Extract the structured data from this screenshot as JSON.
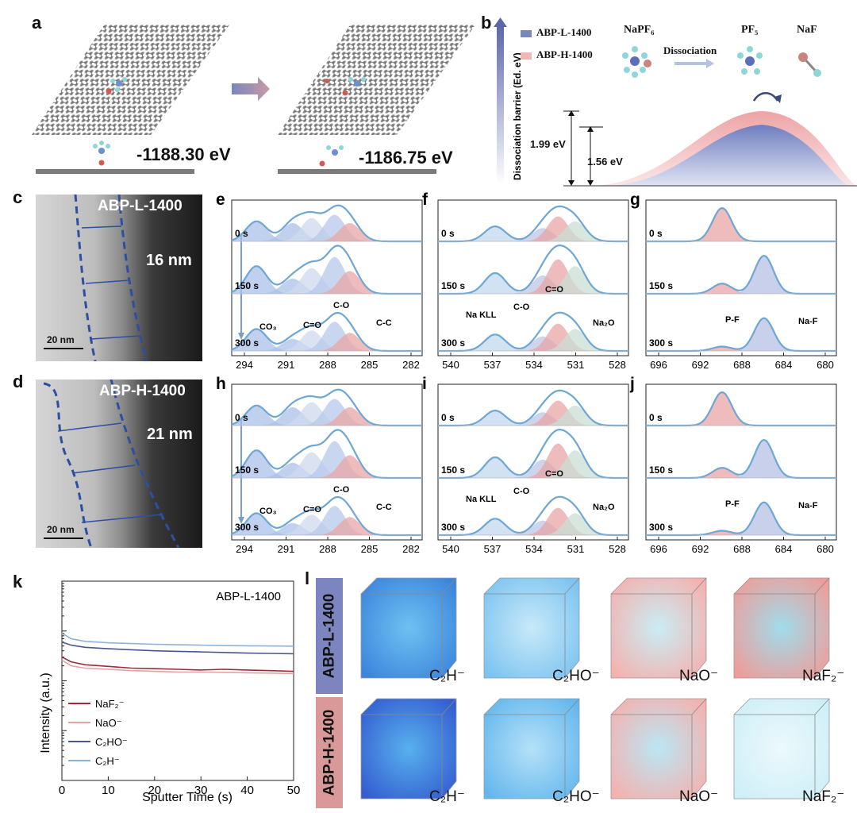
{
  "panels": {
    "a": {
      "letter": "a",
      "energy_left": "-1188.30 eV",
      "energy_right": "-1186.75 eV"
    },
    "b": {
      "letter": "b",
      "y_axis": "Dissociation barrier (Ed. eV)",
      "legend": [
        {
          "name": "ABP-L-1400",
          "color": "#7b86b9"
        },
        {
          "name": "ABP-H-1400",
          "color": "#f0b7b7"
        }
      ],
      "molecules": {
        "reactant": "NaPF₆",
        "arrow": "Dissociation",
        "product1": "PF₅",
        "product2": "NaF"
      },
      "barrier_h": "1.99 eV",
      "barrier_l": "1.56 eV"
    },
    "c": {
      "letter": "c",
      "label": "ABP-L-1400",
      "thickness": "16 nm",
      "scale": "20 nm"
    },
    "d": {
      "letter": "d",
      "label": "ABP-H-1400",
      "thickness": "21 nm",
      "scale": "20 nm"
    },
    "xps": {
      "e": {
        "letter": "e",
        "ticks": [
          "294",
          "291",
          "288",
          "285",
          "282"
        ],
        "times": [
          "0 s",
          "150 s",
          "300 s"
        ],
        "annotations": [
          "CO₃",
          "C=O",
          "C-O",
          "C-C"
        ]
      },
      "f": {
        "letter": "f",
        "ticks": [
          "540",
          "537",
          "534",
          "531",
          "528"
        ],
        "times": [
          "0 s",
          "150 s",
          "300 s"
        ],
        "annotations": [
          "Na KLL",
          "C-O",
          "C=O",
          "Na₂O"
        ]
      },
      "g": {
        "letter": "g",
        "ticks": [
          "696",
          "692",
          "688",
          "684",
          "680"
        ],
        "times": [
          "0 s",
          "150 s",
          "300 s"
        ],
        "annotations": [
          "P-F",
          "Na-F"
        ]
      },
      "h": {
        "letter": "h",
        "ticks": [
          "294",
          "291",
          "288",
          "285",
          "282"
        ],
        "times": [
          "0 s",
          "150 s",
          "300 s"
        ],
        "annotations": [
          "CO₃",
          "C=O",
          "C-O",
          "C-C"
        ]
      },
      "i": {
        "letter": "i",
        "ticks": [
          "540",
          "537",
          "534",
          "531",
          "528"
        ],
        "times": [
          "0 s",
          "150 s",
          "300 s"
        ],
        "annotations": [
          "Na KLL",
          "C-O",
          "C=O",
          "Na₂O"
        ]
      },
      "j": {
        "letter": "j",
        "ticks": [
          "696",
          "692",
          "688",
          "684",
          "680"
        ],
        "times": [
          "0 s",
          "150 s",
          "300 s"
        ],
        "annotations": [
          "P-F",
          "Na-F"
        ]
      }
    },
    "l": {
      "letter": "l",
      "rows": [
        {
          "name": "ABP-L-1400",
          "color": "#7c85bf",
          "labels": [
            "C₂H⁻",
            "C₂HO⁻",
            "NaO⁻",
            "NaF₂⁻"
          ]
        },
        {
          "name": "ABP-H-1400",
          "color": "#d99999",
          "labels": [
            "C₂H⁻",
            "C₂HO⁻",
            "NaO⁻",
            "NaF₂⁻"
          ]
        }
      ]
    }
  },
  "chart_data": {
    "type": "line",
    "title": "ABP-L-1400",
    "letter": "k",
    "xlabel": "Sputter Time (s)",
    "ylabel": "Intensity (a.u.)",
    "xlim": [
      0,
      50
    ],
    "xticks": [
      "0",
      "10",
      "20",
      "30",
      "40",
      "50"
    ],
    "yscale": "log",
    "ylim": [
      1,
      10000
    ],
    "x": [
      0,
      2,
      5,
      10,
      15,
      20,
      25,
      30,
      35,
      40,
      45,
      50
    ],
    "series": [
      {
        "name": "NaF₂⁻",
        "color": "#a12a3a",
        "values": [
          300,
          240,
          210,
          195,
          180,
          175,
          170,
          165,
          170,
          165,
          160,
          155
        ]
      },
      {
        "name": "NaO⁻",
        "color": "#e3a3a3",
        "values": [
          260,
          200,
          180,
          170,
          160,
          155,
          150,
          150,
          148,
          145,
          143,
          140
        ]
      },
      {
        "name": "C₂HO⁻",
        "color": "#4a5694",
        "values": [
          600,
          520,
          470,
          440,
          420,
          400,
          390,
          380,
          370,
          360,
          355,
          350
        ]
      },
      {
        "name": "C₂H⁻",
        "color": "#8fb2d8",
        "values": [
          900,
          700,
          620,
          580,
          560,
          540,
          530,
          520,
          510,
          505,
          500,
          495
        ]
      }
    ]
  }
}
